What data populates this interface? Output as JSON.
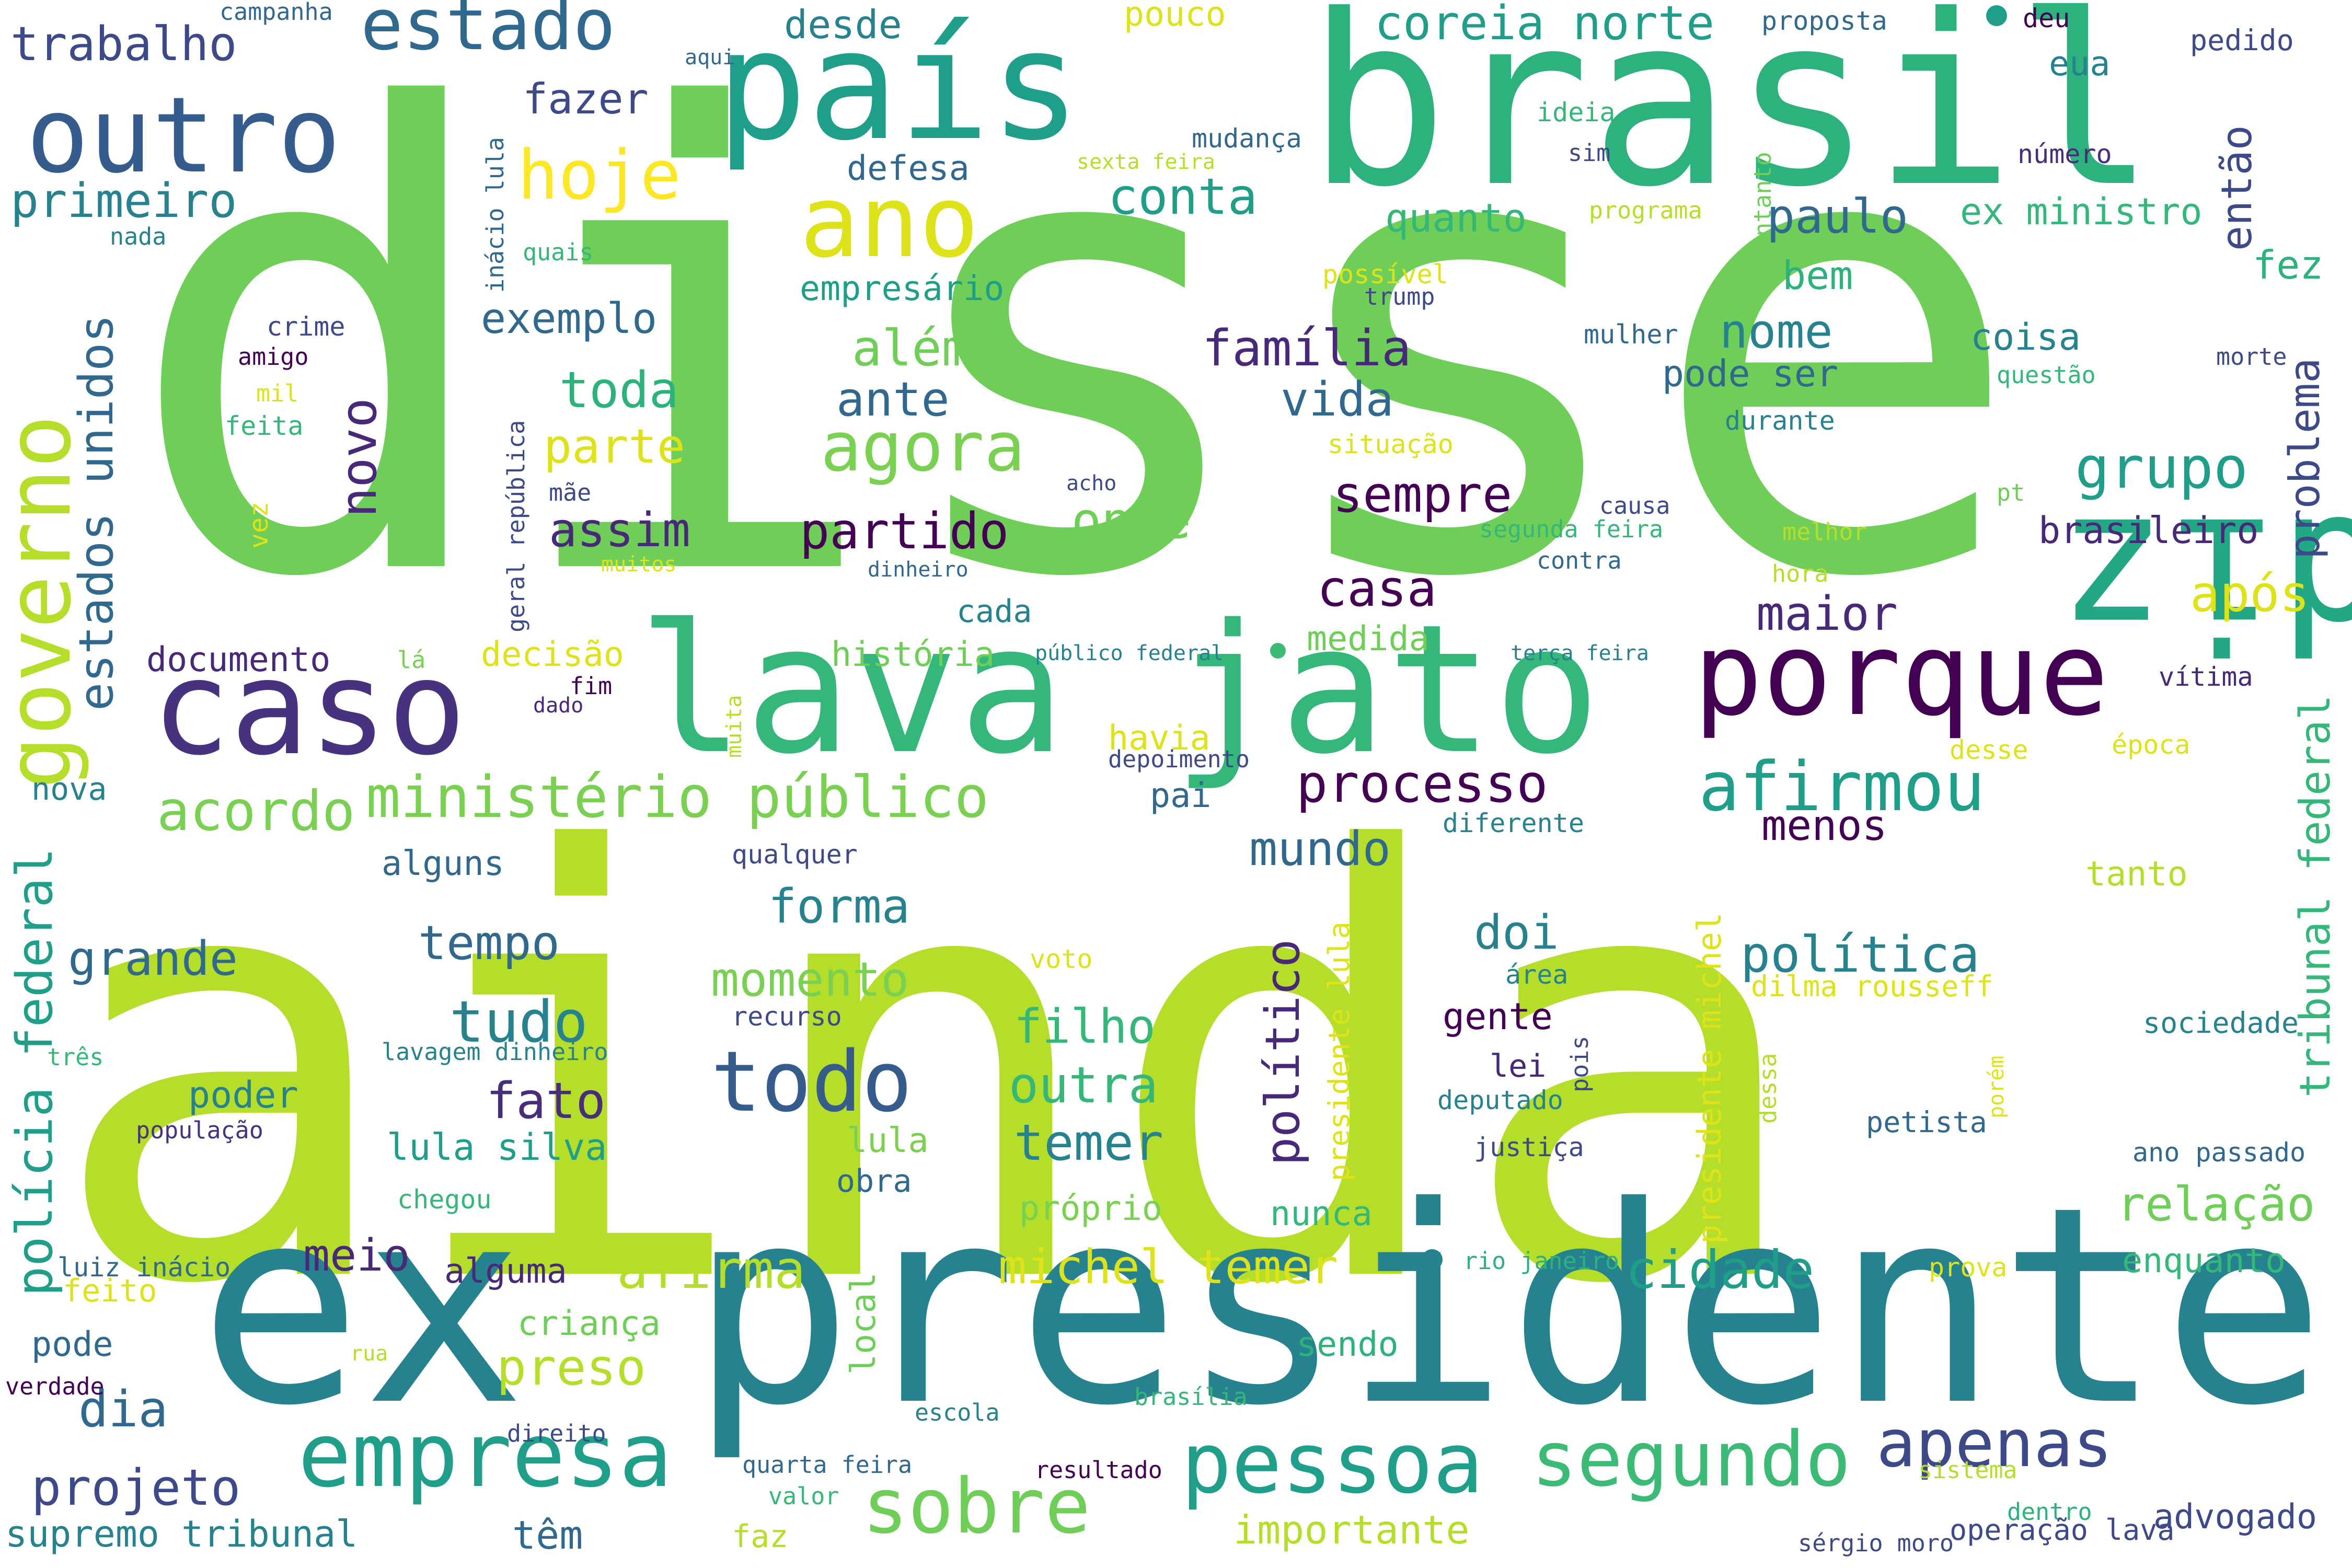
{
  "words": [
    {
      "text": "disse",
      "color": "#6ece58"
    },
    {
      "text": "ainda",
      "color": "#b5de2b"
    },
    {
      "text": "ex presidente",
      "color": "#26828e"
    },
    {
      "text": "brasil",
      "color": "#2db27d"
    },
    {
      "text": "lava jato",
      "color": "#35b779"
    },
    {
      "text": "país",
      "color": "#1f9e89"
    },
    {
      "text": "diz",
      "color": "#22a884"
    },
    {
      "text": "caso",
      "color": "#46327e"
    },
    {
      "text": "porque",
      "color": "#440154"
    },
    {
      "text": "ano",
      "color": "#dde318"
    },
    {
      "text": "outro",
      "color": "#365c8d"
    },
    {
      "text": "governo",
      "color": "#b5de2b"
    },
    {
      "text": "empresa",
      "color": "#1f9e89"
    },
    {
      "text": "pessoa",
      "color": "#1f9e89"
    },
    {
      "text": "segundo",
      "color": "#3bbb75"
    },
    {
      "text": "sobre",
      "color": "#6ece58"
    },
    {
      "text": "apenas",
      "color": "#3e4989"
    },
    {
      "text": "afirmou",
      "color": "#1f9e89"
    },
    {
      "text": "todo",
      "color": "#365c8d"
    },
    {
      "text": "agora",
      "color": "#7ad151"
    },
    {
      "text": "estado",
      "color": "#31688e"
    },
    {
      "text": "hoje",
      "color": "#fde725"
    },
    {
      "text": "ministério público",
      "color": "#7ad151"
    },
    {
      "text": "acordo",
      "color": "#7ad151"
    },
    {
      "text": "processo",
      "color": "#440154"
    },
    {
      "text": "trabalho",
      "color": "#3e4989"
    },
    {
      "text": "primeiro",
      "color": "#26828e"
    },
    {
      "text": "estados unidos",
      "color": "#31688e"
    },
    {
      "text": "polícia federal",
      "color": "#1f9e89"
    },
    {
      "text": "tribunal federal",
      "color": "#35b779"
    },
    {
      "text": "presidente michel",
      "color": "#dde318"
    },
    {
      "text": "coreia norte",
      "color": "#1f9e89"
    },
    {
      "text": "conta",
      "color": "#1f9e89"
    },
    {
      "text": "desde",
      "color": "#26828e"
    },
    {
      "text": "fazer",
      "color": "#3e4989"
    },
    {
      "text": "defesa",
      "color": "#31688e"
    },
    {
      "text": "empresário",
      "color": "#1f9e89"
    },
    {
      "text": "exemplo",
      "color": "#31688e"
    },
    {
      "text": "além",
      "color": "#6ece58"
    },
    {
      "text": "família",
      "color": "#482878"
    },
    {
      "text": "toda",
      "color": "#2db27d"
    },
    {
      "text": "ante",
      "color": "#31688e"
    },
    {
      "text": "vida",
      "color": "#31688e"
    },
    {
      "text": "parte",
      "color": "#dde318"
    },
    {
      "text": "novo",
      "color": "#482878"
    },
    {
      "text": "assim",
      "color": "#482878"
    },
    {
      "text": "partido",
      "color": "#440154"
    },
    {
      "text": "onde",
      "color": "#6ece58"
    },
    {
      "text": "sempre",
      "color": "#440154"
    },
    {
      "text": "casa",
      "color": "#440154"
    },
    {
      "text": "maior",
      "color": "#482878"
    },
    {
      "text": "grupo",
      "color": "#1f9e89"
    },
    {
      "text": "problema",
      "color": "#3e4989"
    },
    {
      "text": "brasileiro",
      "color": "#482878"
    },
    {
      "text": "após",
      "color": "#dde318"
    },
    {
      "text": "paulo",
      "color": "#31688e"
    },
    {
      "text": "então",
      "color": "#3e4989"
    },
    {
      "text": "ex ministro",
      "color": "#35b779"
    },
    {
      "text": "fez",
      "color": "#2db27d"
    },
    {
      "text": "bem",
      "color": "#2db27d"
    },
    {
      "text": "nome",
      "color": "#26828e"
    },
    {
      "text": "coisa",
      "color": "#26828e"
    },
    {
      "text": "pode ser",
      "color": "#31688e"
    },
    {
      "text": "eua",
      "color": "#26828e"
    },
    {
      "text": "quanto",
      "color": "#35b779"
    },
    {
      "text": "menos",
      "color": "#440154"
    },
    {
      "text": "política",
      "color": "#26828e"
    },
    {
      "text": "mundo",
      "color": "#31688e"
    },
    {
      "text": "forma",
      "color": "#26828e"
    },
    {
      "text": "tempo",
      "color": "#31688e"
    },
    {
      "text": "grande",
      "color": "#31688e"
    },
    {
      "text": "momento",
      "color": "#7ad151"
    },
    {
      "text": "tudo",
      "color": "#26828e"
    },
    {
      "text": "fato",
      "color": "#472d7b"
    },
    {
      "text": "filho",
      "color": "#35b779"
    },
    {
      "text": "outra",
      "color": "#35b779"
    },
    {
      "text": "temer",
      "color": "#26828e"
    },
    {
      "text": "doi",
      "color": "#26828e"
    },
    {
      "text": "político",
      "color": "#482878"
    },
    {
      "text": "poder",
      "color": "#26828e"
    },
    {
      "text": "lula silva",
      "color": "#1f9e89"
    },
    {
      "text": "meio",
      "color": "#482878"
    },
    {
      "text": "afirma",
      "color": "#b5de2b"
    },
    {
      "text": "michel temer",
      "color": "#dde318"
    },
    {
      "text": "cidade",
      "color": "#1f9e89"
    },
    {
      "text": "relação",
      "color": "#6ece58"
    },
    {
      "text": "dia",
      "color": "#31688e"
    },
    {
      "text": "projeto",
      "color": "#3e4989"
    },
    {
      "text": "preso",
      "color": "#b5de2b"
    },
    {
      "text": "supremo tribunal",
      "color": "#26828e"
    },
    {
      "text": "têm",
      "color": "#31688e"
    },
    {
      "text": "importante",
      "color": "#b5de2b"
    },
    {
      "text": "documento",
      "color": "#482878"
    },
    {
      "text": "história",
      "color": "#6ece58"
    },
    {
      "text": "medida",
      "color": "#6ece58"
    },
    {
      "text": "decisão",
      "color": "#dde318"
    },
    {
      "text": "havia",
      "color": "#dde318"
    },
    {
      "text": "pai",
      "color": "#31688e"
    },
    {
      "text": "alguns",
      "color": "#31688e"
    },
    {
      "text": "nova",
      "color": "#26828e"
    },
    {
      "text": "lei",
      "color": "#482878"
    },
    {
      "text": "gente",
      "color": "#440154"
    },
    {
      "text": "enquanto",
      "color": "#35b779"
    },
    {
      "text": "advogado",
      "color": "#3e4989"
    },
    {
      "text": "nunca",
      "color": "#35b779"
    },
    {
      "text": "próprio",
      "color": "#7ad151"
    },
    {
      "text": "obra",
      "color": "#31688e"
    },
    {
      "text": "lula",
      "color": "#7ad151"
    },
    {
      "text": "sendo",
      "color": "#2db27d"
    },
    {
      "text": "criança",
      "color": "#6ece58"
    },
    {
      "text": "feito",
      "color": "#dde318"
    },
    {
      "text": "pode",
      "color": "#31688e"
    },
    {
      "text": "alguma",
      "color": "#482878"
    },
    {
      "text": "faz",
      "color": "#b5de2b"
    },
    {
      "text": "tanto",
      "color": "#b5de2b"
    },
    {
      "text": "cada",
      "color": "#26828e"
    },
    {
      "text": "dilma rousseff",
      "color": "#dde318"
    },
    {
      "text": "sociedade",
      "color": "#26828e"
    },
    {
      "text": "petista",
      "color": "#31688e"
    },
    {
      "text": "ano passado",
      "color": "#31688e"
    },
    {
      "text": "deputado",
      "color": "#26828e"
    },
    {
      "text": "justiça",
      "color": "#3e4989"
    },
    {
      "text": "área",
      "color": "#26828e"
    },
    {
      "text": "recurso",
      "color": "#3e4989"
    },
    {
      "text": "qualquer",
      "color": "#3e4989"
    },
    {
      "text": "voto",
      "color": "#dde318"
    },
    {
      "text": "diferente",
      "color": "#26828e"
    },
    {
      "text": "depoimento",
      "color": "#3e4989"
    },
    {
      "text": "vítima",
      "color": "#482878"
    },
    {
      "text": "época",
      "color": "#dde318"
    },
    {
      "text": "desse",
      "color": "#dde318"
    },
    {
      "text": "três",
      "color": "#35b779"
    },
    {
      "text": "população",
      "color": "#46327e"
    },
    {
      "text": "lavagem dinheiro",
      "color": "#26828e"
    },
    {
      "text": "chegou",
      "color": "#35b779"
    },
    {
      "text": "luiz inácio",
      "color": "#31688e"
    },
    {
      "text": "verdade",
      "color": "#440154"
    },
    {
      "text": "rua",
      "color": "#b5de2b"
    },
    {
      "text": "direito",
      "color": "#3e4989"
    },
    {
      "text": "escola",
      "color": "#26828e"
    },
    {
      "text": "brasília",
      "color": "#35b779"
    },
    {
      "text": "quarta feira",
      "color": "#31688e"
    },
    {
      "text": "valor",
      "color": "#35b779"
    },
    {
      "text": "resultado",
      "color": "#440154"
    },
    {
      "text": "sistema",
      "color": "#b5de2b"
    },
    {
      "text": "dentro",
      "color": "#2db27d"
    },
    {
      "text": "sérgio moro",
      "color": "#3e4989"
    },
    {
      "text": "operação lava",
      "color": "#3e4989"
    },
    {
      "text": "prova",
      "color": "#dde318"
    },
    {
      "text": "rio janeiro",
      "color": "#2db27d"
    },
    {
      "text": "campanha",
      "color": "#31688e"
    },
    {
      "text": "aqui",
      "color": "#31688e"
    },
    {
      "text": "pouco",
      "color": "#dde318"
    },
    {
      "text": "deu",
      "color": "#440154"
    },
    {
      "text": "proposta",
      "color": "#31688e"
    },
    {
      "text": "pedido",
      "color": "#3e4989"
    },
    {
      "text": "número",
      "color": "#472d7b"
    },
    {
      "text": "mudança",
      "color": "#31688e"
    },
    {
      "text": "ideia",
      "color": "#35b779"
    },
    {
      "text": "sim",
      "color": "#3e4989"
    },
    {
      "text": "sexta feira",
      "color": "#b5de2b"
    },
    {
      "text": "programa",
      "color": "#b5de2b"
    },
    {
      "text": "entanto",
      "color": "#6ece58"
    },
    {
      "text": "nada",
      "color": "#26828e"
    },
    {
      "text": "quais",
      "color": "#35b779"
    },
    {
      "text": "crime",
      "color": "#3e4989"
    },
    {
      "text": "amigo",
      "color": "#440154"
    },
    {
      "text": "mil",
      "color": "#dde318"
    },
    {
      "text": "feita",
      "color": "#35b779"
    },
    {
      "text": "vez",
      "color": "#dde318"
    },
    {
      "text": "mãe",
      "color": "#3e4989"
    },
    {
      "text": "muitos",
      "color": "#dde318"
    },
    {
      "text": "possível",
      "color": "#dde318"
    },
    {
      "text": "trump",
      "color": "#3e4989"
    },
    {
      "text": "situação",
      "color": "#dde318"
    },
    {
      "text": "acho",
      "color": "#3e4989"
    },
    {
      "text": "mulher",
      "color": "#31688e"
    },
    {
      "text": "durante",
      "color": "#26828e"
    },
    {
      "text": "morte",
      "color": "#3e4989"
    },
    {
      "text": "questão",
      "color": "#35b779"
    },
    {
      "text": "pt",
      "color": "#6ece58"
    },
    {
      "text": "causa",
      "color": "#3e4989"
    },
    {
      "text": "segunda feira",
      "color": "#35b779"
    },
    {
      "text": "contra",
      "color": "#31688e"
    },
    {
      "text": "melhor",
      "color": "#b5de2b"
    },
    {
      "text": "hora",
      "color": "#b5de2b"
    },
    {
      "text": "dinheiro",
      "color": "#31688e"
    },
    {
      "text": "público federal",
      "color": "#26828e"
    },
    {
      "text": "terça feira",
      "color": "#26828e"
    },
    {
      "text": "fim",
      "color": "#440154"
    },
    {
      "text": "dado",
      "color": "#482878"
    },
    {
      "text": "lá",
      "color": "#7ad151"
    },
    {
      "text": "muita",
      "color": "#b5de2b"
    },
    {
      "text": "inácio lula",
      "color": "#31688e"
    },
    {
      "text": "geral república",
      "color": "#3e4989"
    },
    {
      "text": "presidente lula",
      "color": "#dde318"
    },
    {
      "text": "dessa",
      "color": "#b5de2b"
    },
    {
      "text": "pois",
      "color": "#3e4989"
    },
    {
      "text": "porém",
      "color": "#dde318"
    },
    {
      "text": "local",
      "color": "#6ece58"
    }
  ]
}
